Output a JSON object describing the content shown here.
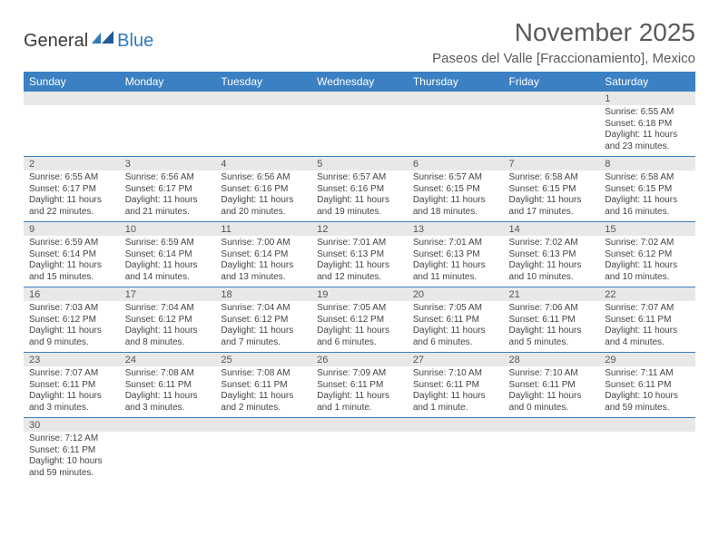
{
  "logo": {
    "part1": "General",
    "part2": "Blue"
  },
  "title": "November 2025",
  "location": "Paseos del Valle [Fraccionamiento], Mexico",
  "colors": {
    "header_bg": "#3b80c2",
    "header_text": "#ffffff",
    "daynum_bg": "#e8e8e8",
    "cell_border": "#3b80c2",
    "logo_dark": "#3a3a3a",
    "logo_blue": "#2f7bbf",
    "title_color": "#5a5a5a"
  },
  "day_labels": [
    "Sunday",
    "Monday",
    "Tuesday",
    "Wednesday",
    "Thursday",
    "Friday",
    "Saturday"
  ],
  "weeks": [
    [
      {
        "empty": true
      },
      {
        "empty": true
      },
      {
        "empty": true
      },
      {
        "empty": true
      },
      {
        "empty": true
      },
      {
        "empty": true
      },
      {
        "num": "1",
        "sunrise": "Sunrise: 6:55 AM",
        "sunset": "Sunset: 6:18 PM",
        "daylight1": "Daylight: 11 hours",
        "daylight2": "and 23 minutes."
      }
    ],
    [
      {
        "num": "2",
        "sunrise": "Sunrise: 6:55 AM",
        "sunset": "Sunset: 6:17 PM",
        "daylight1": "Daylight: 11 hours",
        "daylight2": "and 22 minutes."
      },
      {
        "num": "3",
        "sunrise": "Sunrise: 6:56 AM",
        "sunset": "Sunset: 6:17 PM",
        "daylight1": "Daylight: 11 hours",
        "daylight2": "and 21 minutes."
      },
      {
        "num": "4",
        "sunrise": "Sunrise: 6:56 AM",
        "sunset": "Sunset: 6:16 PM",
        "daylight1": "Daylight: 11 hours",
        "daylight2": "and 20 minutes."
      },
      {
        "num": "5",
        "sunrise": "Sunrise: 6:57 AM",
        "sunset": "Sunset: 6:16 PM",
        "daylight1": "Daylight: 11 hours",
        "daylight2": "and 19 minutes."
      },
      {
        "num": "6",
        "sunrise": "Sunrise: 6:57 AM",
        "sunset": "Sunset: 6:15 PM",
        "daylight1": "Daylight: 11 hours",
        "daylight2": "and 18 minutes."
      },
      {
        "num": "7",
        "sunrise": "Sunrise: 6:58 AM",
        "sunset": "Sunset: 6:15 PM",
        "daylight1": "Daylight: 11 hours",
        "daylight2": "and 17 minutes."
      },
      {
        "num": "8",
        "sunrise": "Sunrise: 6:58 AM",
        "sunset": "Sunset: 6:15 PM",
        "daylight1": "Daylight: 11 hours",
        "daylight2": "and 16 minutes."
      }
    ],
    [
      {
        "num": "9",
        "sunrise": "Sunrise: 6:59 AM",
        "sunset": "Sunset: 6:14 PM",
        "daylight1": "Daylight: 11 hours",
        "daylight2": "and 15 minutes."
      },
      {
        "num": "10",
        "sunrise": "Sunrise: 6:59 AM",
        "sunset": "Sunset: 6:14 PM",
        "daylight1": "Daylight: 11 hours",
        "daylight2": "and 14 minutes."
      },
      {
        "num": "11",
        "sunrise": "Sunrise: 7:00 AM",
        "sunset": "Sunset: 6:14 PM",
        "daylight1": "Daylight: 11 hours",
        "daylight2": "and 13 minutes."
      },
      {
        "num": "12",
        "sunrise": "Sunrise: 7:01 AM",
        "sunset": "Sunset: 6:13 PM",
        "daylight1": "Daylight: 11 hours",
        "daylight2": "and 12 minutes."
      },
      {
        "num": "13",
        "sunrise": "Sunrise: 7:01 AM",
        "sunset": "Sunset: 6:13 PM",
        "daylight1": "Daylight: 11 hours",
        "daylight2": "and 11 minutes."
      },
      {
        "num": "14",
        "sunrise": "Sunrise: 7:02 AM",
        "sunset": "Sunset: 6:13 PM",
        "daylight1": "Daylight: 11 hours",
        "daylight2": "and 10 minutes."
      },
      {
        "num": "15",
        "sunrise": "Sunrise: 7:02 AM",
        "sunset": "Sunset: 6:12 PM",
        "daylight1": "Daylight: 11 hours",
        "daylight2": "and 10 minutes."
      }
    ],
    [
      {
        "num": "16",
        "sunrise": "Sunrise: 7:03 AM",
        "sunset": "Sunset: 6:12 PM",
        "daylight1": "Daylight: 11 hours",
        "daylight2": "and 9 minutes."
      },
      {
        "num": "17",
        "sunrise": "Sunrise: 7:04 AM",
        "sunset": "Sunset: 6:12 PM",
        "daylight1": "Daylight: 11 hours",
        "daylight2": "and 8 minutes."
      },
      {
        "num": "18",
        "sunrise": "Sunrise: 7:04 AM",
        "sunset": "Sunset: 6:12 PM",
        "daylight1": "Daylight: 11 hours",
        "daylight2": "and 7 minutes."
      },
      {
        "num": "19",
        "sunrise": "Sunrise: 7:05 AM",
        "sunset": "Sunset: 6:12 PM",
        "daylight1": "Daylight: 11 hours",
        "daylight2": "and 6 minutes."
      },
      {
        "num": "20",
        "sunrise": "Sunrise: 7:05 AM",
        "sunset": "Sunset: 6:11 PM",
        "daylight1": "Daylight: 11 hours",
        "daylight2": "and 6 minutes."
      },
      {
        "num": "21",
        "sunrise": "Sunrise: 7:06 AM",
        "sunset": "Sunset: 6:11 PM",
        "daylight1": "Daylight: 11 hours",
        "daylight2": "and 5 minutes."
      },
      {
        "num": "22",
        "sunrise": "Sunrise: 7:07 AM",
        "sunset": "Sunset: 6:11 PM",
        "daylight1": "Daylight: 11 hours",
        "daylight2": "and 4 minutes."
      }
    ],
    [
      {
        "num": "23",
        "sunrise": "Sunrise: 7:07 AM",
        "sunset": "Sunset: 6:11 PM",
        "daylight1": "Daylight: 11 hours",
        "daylight2": "and 3 minutes."
      },
      {
        "num": "24",
        "sunrise": "Sunrise: 7:08 AM",
        "sunset": "Sunset: 6:11 PM",
        "daylight1": "Daylight: 11 hours",
        "daylight2": "and 3 minutes."
      },
      {
        "num": "25",
        "sunrise": "Sunrise: 7:08 AM",
        "sunset": "Sunset: 6:11 PM",
        "daylight1": "Daylight: 11 hours",
        "daylight2": "and 2 minutes."
      },
      {
        "num": "26",
        "sunrise": "Sunrise: 7:09 AM",
        "sunset": "Sunset: 6:11 PM",
        "daylight1": "Daylight: 11 hours",
        "daylight2": "and 1 minute."
      },
      {
        "num": "27",
        "sunrise": "Sunrise: 7:10 AM",
        "sunset": "Sunset: 6:11 PM",
        "daylight1": "Daylight: 11 hours",
        "daylight2": "and 1 minute."
      },
      {
        "num": "28",
        "sunrise": "Sunrise: 7:10 AM",
        "sunset": "Sunset: 6:11 PM",
        "daylight1": "Daylight: 11 hours",
        "daylight2": "and 0 minutes."
      },
      {
        "num": "29",
        "sunrise": "Sunrise: 7:11 AM",
        "sunset": "Sunset: 6:11 PM",
        "daylight1": "Daylight: 10 hours",
        "daylight2": "and 59 minutes."
      }
    ],
    [
      {
        "num": "30",
        "sunrise": "Sunrise: 7:12 AM",
        "sunset": "Sunset: 6:11 PM",
        "daylight1": "Daylight: 10 hours",
        "daylight2": "and 59 minutes."
      },
      {
        "empty": true
      },
      {
        "empty": true
      },
      {
        "empty": true
      },
      {
        "empty": true
      },
      {
        "empty": true
      },
      {
        "empty": true
      }
    ]
  ]
}
